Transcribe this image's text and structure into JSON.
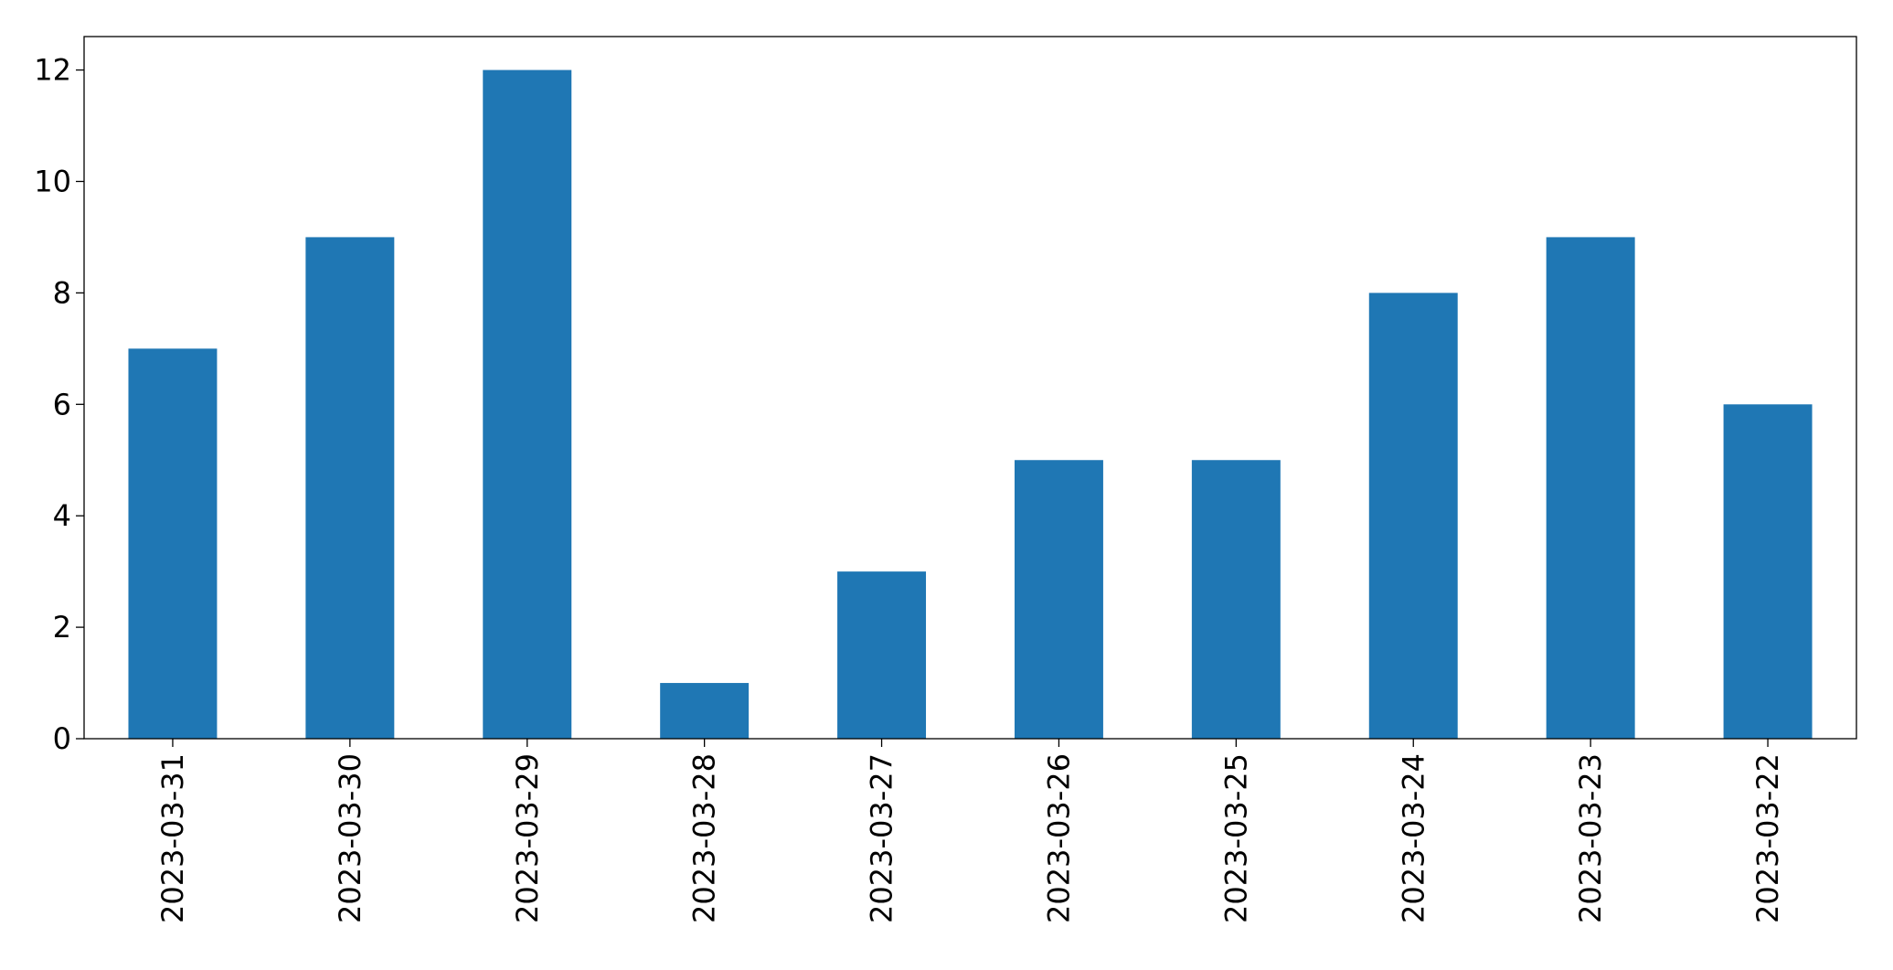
{
  "chart_data": {
    "type": "bar",
    "categories": [
      "2023-03-31",
      "2023-03-30",
      "2023-03-29",
      "2023-03-28",
      "2023-03-27",
      "2023-03-26",
      "2023-03-25",
      "2023-03-24",
      "2023-03-23",
      "2023-03-22"
    ],
    "values": [
      7,
      9,
      12,
      1,
      3,
      5,
      5,
      8,
      9,
      6
    ],
    "color": "#1f77b4",
    "ylim": [
      0,
      12.6
    ],
    "yticks": [
      0,
      2,
      4,
      6,
      8,
      10,
      12
    ],
    "grid": false
  }
}
